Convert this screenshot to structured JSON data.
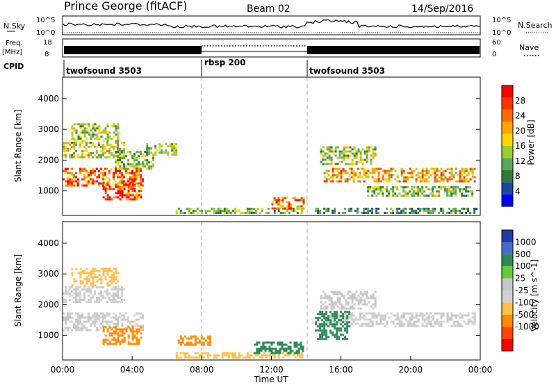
{
  "header": {
    "station": "Prince George (fitACF)",
    "beam": "Beam 02",
    "date": "14/Sep/2016"
  },
  "strips": {
    "nsky": {
      "label": "N.Sky",
      "ticks": [
        "10^5",
        "10^0"
      ]
    },
    "nsearch": {
      "label": "N.Search",
      "ticks": [
        "10^5",
        "10^0"
      ]
    },
    "freq": {
      "label_1": "Freq.",
      "label_2": "[MHz]",
      "ticks": [
        "18",
        "8"
      ]
    },
    "nave": {
      "label": "Nave",
      "ticks": [
        "60",
        "0"
      ]
    },
    "cpid": {
      "label": "CPID"
    }
  },
  "cpid_segments": [
    {
      "name": "twofsound 3503",
      "start_hour": 0,
      "end_hour": 8
    },
    {
      "name": "rbsp 200",
      "start_hour": 8,
      "end_hour": 14
    },
    {
      "name": "twofsound 3503",
      "start_hour": 14,
      "end_hour": 24
    }
  ],
  "colors": {
    "power_scale": [
      "#0000ff",
      "#1f46a0",
      "#2e7d32",
      "#5fa35f",
      "#9acd32",
      "#ffd700",
      "#ffa500",
      "#ff6a00",
      "#ff3300",
      "#ff0000"
    ],
    "velocity_scale": [
      "#ff0000",
      "#ff4500",
      "#ff8c00",
      "#ffc04d",
      "#d3d3d3",
      "#c8c8c8",
      "#66cc33",
      "#2e8b57",
      "#4a6cc8",
      "#1f3ca8"
    ],
    "mode_divider": "#b0b0b0"
  },
  "chart_data": [
    {
      "type": "heatmap",
      "panel": "power",
      "title": "",
      "xlabel": "",
      "ylabel": "Slant Range [km]",
      "xlim_hours": [
        0,
        24
      ],
      "ylim_km": [
        200,
        4700
      ],
      "y_ticks": [
        1000,
        2000,
        3000,
        4000
      ],
      "colorbar": {
        "label": "Power [dB]",
        "range": [
          0,
          32
        ],
        "ticks": [
          4,
          8,
          12,
          16,
          20,
          24,
          28
        ]
      },
      "echo_regions": [
        {
          "t0": 0.0,
          "t1": 4.6,
          "r0": 1150,
          "r1": 1750,
          "value": 24
        },
        {
          "t0": 2.3,
          "t1": 4.5,
          "r0": 700,
          "r1": 1300,
          "value": 27
        },
        {
          "t0": 0.0,
          "t1": 3.5,
          "r0": 2100,
          "r1": 2600,
          "value": 16
        },
        {
          "t0": 0.5,
          "t1": 3.2,
          "r0": 2650,
          "r1": 3200,
          "value": 14
        },
        {
          "t0": 3.0,
          "t1": 5.2,
          "r0": 1700,
          "r1": 2300,
          "value": 13
        },
        {
          "t0": 4.8,
          "t1": 6.5,
          "r0": 2200,
          "r1": 2550,
          "value": 15
        },
        {
          "t0": 6.5,
          "t1": 13.8,
          "r0": 250,
          "r1": 450,
          "value": 12
        },
        {
          "t0": 12.0,
          "t1": 13.8,
          "r0": 450,
          "r1": 800,
          "value": 22
        },
        {
          "t0": 15.0,
          "t1": 23.7,
          "r0": 1300,
          "r1": 1750,
          "value": 20
        },
        {
          "t0": 14.8,
          "t1": 18.0,
          "r0": 1900,
          "r1": 2450,
          "value": 14
        },
        {
          "t0": 17.5,
          "t1": 23.5,
          "r0": 850,
          "r1": 1150,
          "value": 12
        },
        {
          "t0": 14.5,
          "t1": 23.8,
          "r0": 250,
          "r1": 450,
          "value": 9
        }
      ]
    },
    {
      "type": "heatmap",
      "panel": "velocity",
      "title": "",
      "xlabel": "Time UT",
      "ylabel": "Slant Range [km]",
      "xlim_hours": [
        0,
        24
      ],
      "ylim_km": [
        200,
        4700
      ],
      "x_ticks": [
        "00:00",
        "04:00",
        "08:00",
        "12:00",
        "16:00",
        "20:00",
        "00:00"
      ],
      "y_ticks": [
        1000,
        2000,
        3000,
        4000
      ],
      "colorbar": {
        "label": "Velocity [m s^-1]",
        "ticks": [
          "1000",
          "500",
          "100",
          "25",
          "-25",
          "-100",
          "-500",
          "-1000"
        ]
      },
      "echo_regions": [
        {
          "t0": 0.0,
          "t1": 4.6,
          "r0": 1150,
          "r1": 1750,
          "value": 0
        },
        {
          "t0": 0.0,
          "t1": 3.5,
          "r0": 2100,
          "r1": 2600,
          "value": 0
        },
        {
          "t0": 2.3,
          "t1": 4.5,
          "r0": 700,
          "r1": 1300,
          "value": -200
        },
        {
          "t0": 0.5,
          "t1": 3.2,
          "r0": 2650,
          "r1": 3200,
          "value": -60
        },
        {
          "t0": 6.5,
          "t1": 8.5,
          "r0": 700,
          "r1": 1000,
          "value": -300
        },
        {
          "t0": 6.5,
          "t1": 13.8,
          "r0": 250,
          "r1": 450,
          "value": -70
        },
        {
          "t0": 11.0,
          "t1": 13.8,
          "r0": 400,
          "r1": 800,
          "value": 200
        },
        {
          "t0": 15.0,
          "t1": 23.7,
          "r0": 1300,
          "r1": 1750,
          "value": 0
        },
        {
          "t0": 14.8,
          "t1": 18.0,
          "r0": 1900,
          "r1": 2450,
          "value": 10
        },
        {
          "t0": 14.5,
          "t1": 16.5,
          "r0": 900,
          "r1": 1800,
          "value": 300
        }
      ]
    }
  ],
  "footer": {
    "time_label": "Time UT"
  }
}
